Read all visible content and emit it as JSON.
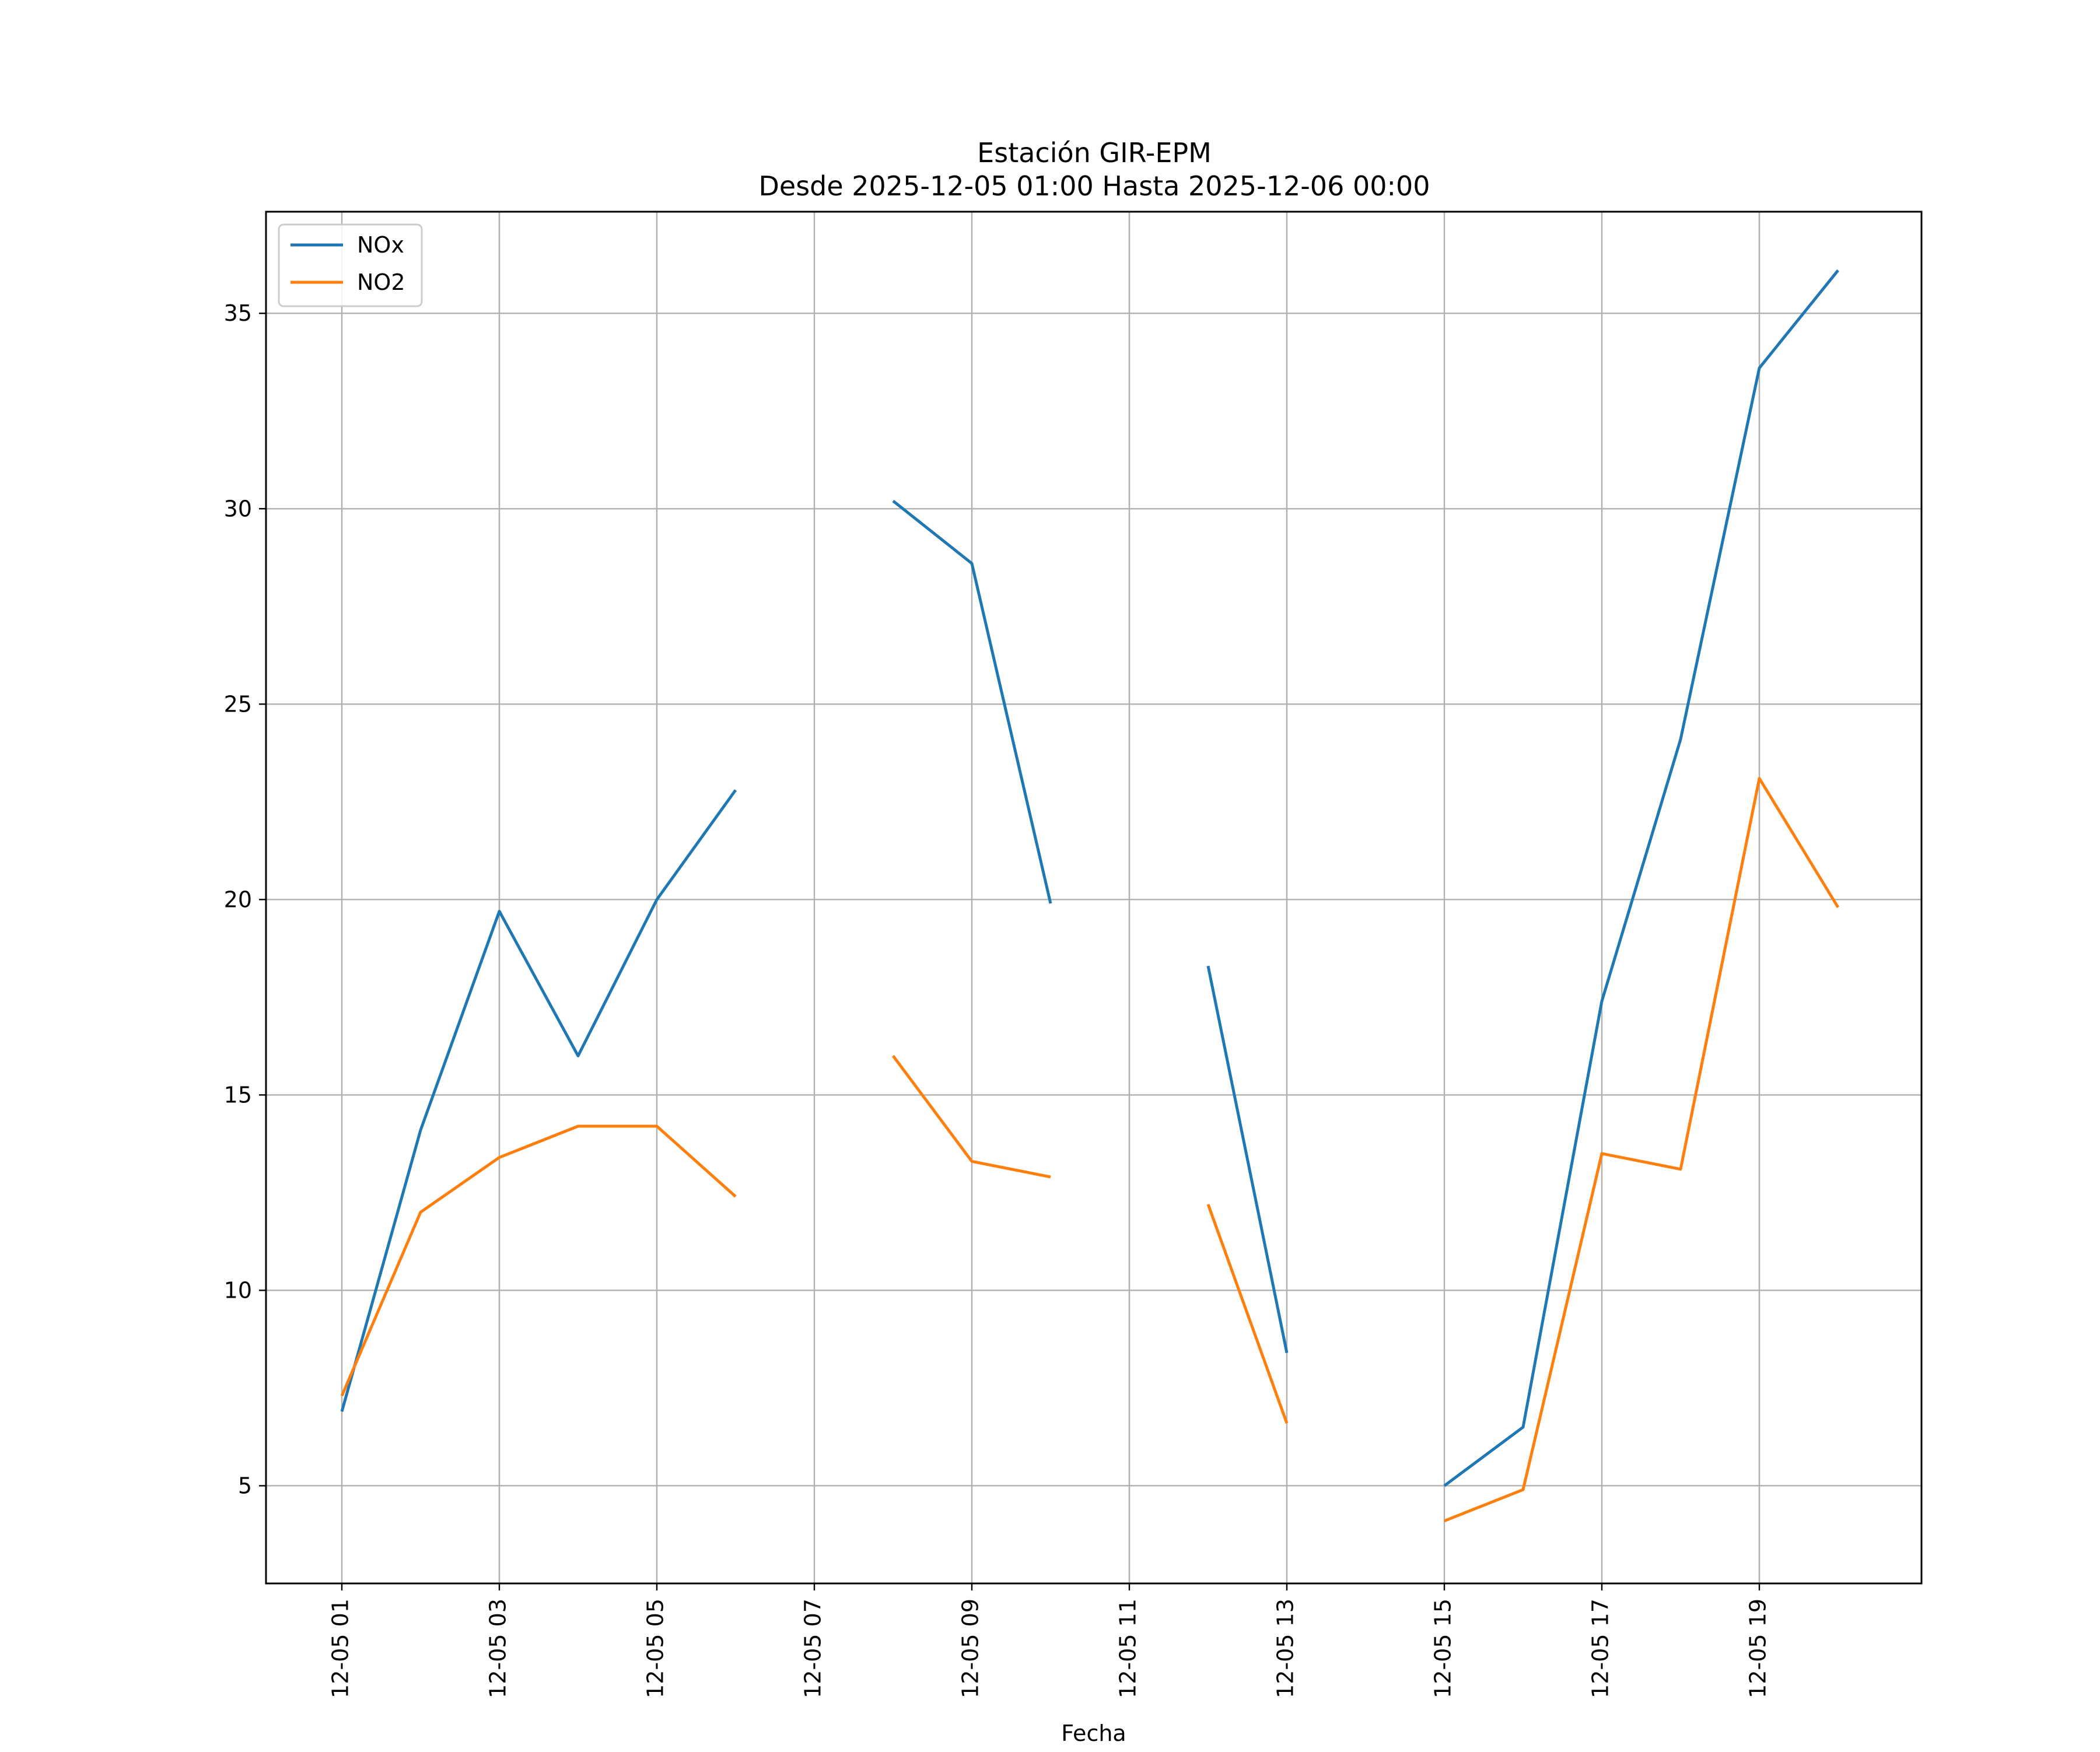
{
  "chart_data": {
    "type": "line",
    "title": "Estación GIR-EPM",
    "subtitle": "Desde 2025-12-05 01:00 Hasta 2025-12-06 00:00",
    "xlabel": "Fecha",
    "ylabel": "",
    "x": [
      "12-05 01",
      "12-05 02",
      "12-05 03",
      "12-05 04",
      "12-05 05",
      "12-05 06",
      "12-05 07",
      "12-05 08",
      "12-05 09",
      "12-05 10",
      "12-05 11",
      "12-05 12",
      "12-05 13",
      "12-05 14",
      "12-05 15",
      "12-05 16",
      "12-05 17",
      "12-05 18",
      "12-05 19",
      "12-05 20"
    ],
    "x_tick_labels": [
      "12-05 01",
      "12-05 03",
      "12-05 05",
      "12-05 07",
      "12-05 09",
      "12-05 11",
      "12-05 13",
      "12-05 15",
      "12-05 17",
      "12-05 19"
    ],
    "y_ticks": [
      5,
      10,
      15,
      20,
      25,
      30,
      35
    ],
    "ylim": [
      2.5,
      37.6
    ],
    "grid": true,
    "legend_position": "upper-left",
    "series": [
      {
        "name": "NOx",
        "color": "#1f77b4",
        "values": [
          6.9,
          14.1,
          19.7,
          16.0,
          20.0,
          22.8,
          null,
          30.2,
          28.6,
          19.9,
          null,
          18.3,
          8.4,
          null,
          5.0,
          6.5,
          17.4,
          24.1,
          33.6,
          36.1
        ]
      },
      {
        "name": "NO2",
        "color": "#ff7f0e",
        "values": [
          7.3,
          12.0,
          13.4,
          14.2,
          14.2,
          12.4,
          null,
          16.0,
          13.3,
          12.9,
          null,
          12.2,
          6.6,
          null,
          4.1,
          4.9,
          13.5,
          13.1,
          23.1,
          19.8
        ]
      }
    ]
  }
}
